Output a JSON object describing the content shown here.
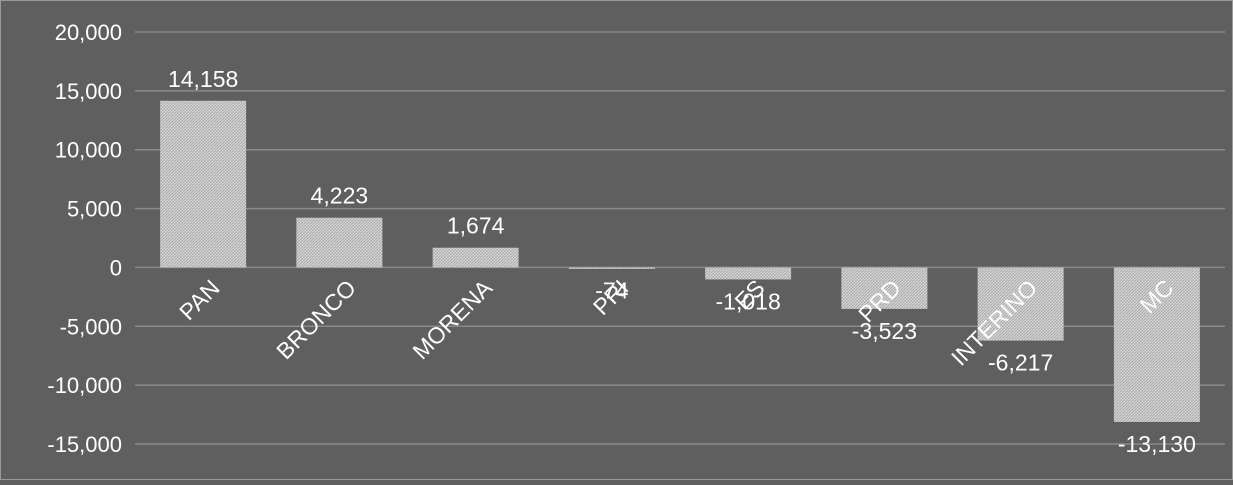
{
  "chart_data": {
    "type": "bar",
    "title": "",
    "xlabel": "",
    "ylabel": "",
    "categories": [
      "PAN",
      "BRONCO",
      "MORENA",
      "PRI",
      "ES",
      "PRD",
      "INTERINO",
      "MC"
    ],
    "values": [
      14158,
      4223,
      1674,
      -74,
      -1018,
      -3523,
      -6217,
      -13130
    ],
    "data_labels": [
      "14,158",
      "4,223",
      "1,674",
      "-74",
      "-1,018",
      "-3,523",
      "-6,217",
      "-13,130"
    ],
    "ylim": [
      -15000,
      20000
    ],
    "yticks": [
      20000,
      15000,
      10000,
      5000,
      0,
      -5000,
      -10000,
      -15000
    ],
    "ytick_labels": [
      "20,000",
      "15,000",
      "10,000",
      "5,000",
      "0",
      "-5,000",
      "-10,000",
      "-15,000"
    ],
    "grid": true,
    "legend": "none",
    "colors": {
      "background": "#5f5f5f",
      "bar_fill": "#d4d4d4",
      "bar_pattern": "#a9a9a9",
      "grid": "#8a8a8a",
      "text": "#ffffff",
      "border": "#9a9a9a"
    }
  }
}
